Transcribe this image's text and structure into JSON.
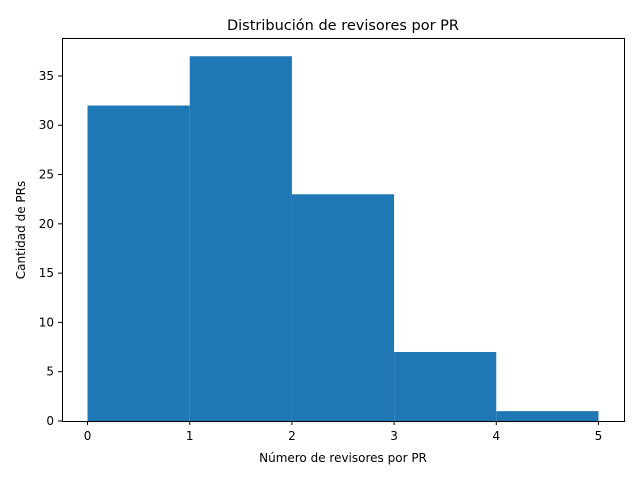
{
  "chart_data": {
    "type": "bar",
    "title": "Distribución de revisores por PR",
    "xlabel": "Número de revisores por PR",
    "ylabel": "Cantidad de PRs",
    "bins": [
      {
        "start": 0,
        "end": 1,
        "value": 32
      },
      {
        "start": 1,
        "end": 2,
        "value": 37
      },
      {
        "start": 2,
        "end": 3,
        "value": 23
      },
      {
        "start": 3,
        "end": 4,
        "value": 7
      },
      {
        "start": 4,
        "end": 5,
        "value": 1
      }
    ],
    "xlim": [
      -0.25,
      5.25
    ],
    "ylim": [
      0,
      38.85
    ],
    "xticks": [
      0,
      1,
      2,
      3,
      4,
      5
    ],
    "xtick_labels": [
      "0",
      "1",
      "2",
      "3",
      "4",
      "5"
    ],
    "yticks": [
      0,
      5,
      10,
      15,
      20,
      25,
      30,
      35
    ],
    "ytick_labels": [
      "0",
      "5",
      "10",
      "15",
      "20",
      "25",
      "30",
      "35"
    ],
    "bar_color": "#1f77b4",
    "grid": false,
    "legend": "none"
  }
}
